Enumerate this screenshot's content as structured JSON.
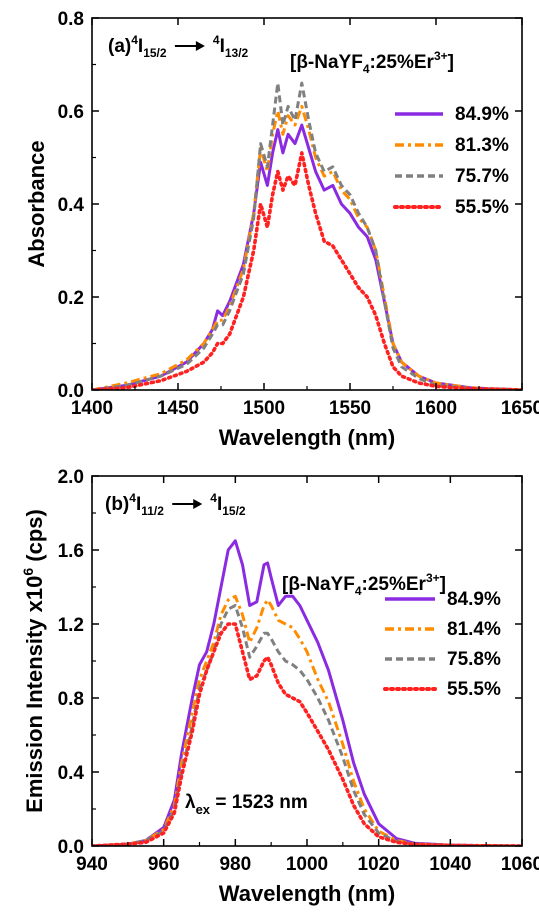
{
  "chart_data": [
    {
      "type": "line",
      "panel_label": "(a)",
      "transition": {
        "from_sup": "4",
        "from_main": "I",
        "from_sub": "15/2",
        "to_sup": "4",
        "to_main": "I",
        "to_sub": "13/2"
      },
      "sample": {
        "prefix": "[β-NaYF",
        "sub": "4",
        "mid": ":25%Er",
        "sup": "3+",
        "suffix": "]"
      },
      "xlabel": "Wavelength (nm)",
      "ylabel": "Absorbance",
      "xlim": [
        1400,
        1650
      ],
      "ylim": [
        0,
        0.8
      ],
      "xticks": [
        1400,
        1450,
        1500,
        1550,
        1600,
        1650
      ],
      "xtick_labels": [
        "1400",
        "1450",
        "1500",
        "1550",
        "1600",
        "1650"
      ],
      "yticks": [
        0,
        0.2,
        0.4,
        0.6,
        0.8
      ],
      "ytick_labels": [
        "0.0",
        "0.2",
        "0.4",
        "0.6",
        "0.8"
      ],
      "legend_position": "right",
      "series": [
        {
          "name": "84.9%",
          "color": "#8a2be2",
          "style": "solid",
          "x": [
            1400,
            1420,
            1440,
            1455,
            1465,
            1470,
            1473,
            1476,
            1480,
            1488,
            1494,
            1498,
            1502,
            1505,
            1508,
            1511,
            1514,
            1518,
            1522,
            1526,
            1530,
            1535,
            1540,
            1545,
            1550,
            1555,
            1560,
            1565,
            1570,
            1575,
            1580,
            1590,
            1600,
            1610,
            1620,
            1630,
            1640,
            1650
          ],
          "y": [
            0.0,
            0.01,
            0.03,
            0.06,
            0.1,
            0.13,
            0.17,
            0.16,
            0.19,
            0.27,
            0.38,
            0.49,
            0.44,
            0.51,
            0.56,
            0.51,
            0.55,
            0.53,
            0.57,
            0.52,
            0.47,
            0.43,
            0.44,
            0.4,
            0.38,
            0.35,
            0.33,
            0.28,
            0.19,
            0.1,
            0.06,
            0.03,
            0.015,
            0.01,
            0.005,
            0.003,
            0.002,
            0.0
          ]
        },
        {
          "name": "81.3%",
          "color": "#ff8c00",
          "style": "dashdot",
          "x": [
            1400,
            1420,
            1440,
            1455,
            1465,
            1470,
            1473,
            1476,
            1480,
            1488,
            1494,
            1498,
            1502,
            1505,
            1508,
            1511,
            1514,
            1518,
            1522,
            1526,
            1530,
            1535,
            1540,
            1545,
            1550,
            1555,
            1560,
            1565,
            1570,
            1575,
            1580,
            1590,
            1600,
            1610,
            1620,
            1630,
            1640,
            1650
          ],
          "y": [
            0.0,
            0.015,
            0.035,
            0.065,
            0.1,
            0.13,
            0.15,
            0.15,
            0.18,
            0.26,
            0.38,
            0.52,
            0.47,
            0.55,
            0.6,
            0.55,
            0.59,
            0.57,
            0.61,
            0.56,
            0.5,
            0.46,
            0.47,
            0.43,
            0.41,
            0.37,
            0.35,
            0.3,
            0.2,
            0.1,
            0.06,
            0.03,
            0.015,
            0.01,
            0.005,
            0.003,
            0.002,
            0.0
          ]
        },
        {
          "name": "75.7%",
          "color": "#808080",
          "style": "dashed",
          "x": [
            1400,
            1420,
            1440,
            1455,
            1465,
            1470,
            1473,
            1476,
            1480,
            1488,
            1494,
            1498,
            1502,
            1505,
            1508,
            1511,
            1514,
            1518,
            1522,
            1526,
            1530,
            1535,
            1540,
            1545,
            1550,
            1555,
            1560,
            1565,
            1570,
            1575,
            1580,
            1590,
            1600,
            1610,
            1620,
            1630,
            1640,
            1650
          ],
          "y": [
            0.0,
            0.01,
            0.03,
            0.055,
            0.09,
            0.12,
            0.14,
            0.14,
            0.17,
            0.25,
            0.37,
            0.53,
            0.48,
            0.57,
            0.66,
            0.57,
            0.61,
            0.58,
            0.66,
            0.58,
            0.51,
            0.47,
            0.48,
            0.44,
            0.42,
            0.38,
            0.35,
            0.3,
            0.19,
            0.09,
            0.05,
            0.025,
            0.01,
            0.007,
            0.004,
            0.002,
            0.001,
            0.0
          ]
        },
        {
          "name": "55.5%",
          "color": "#ff2020",
          "style": "dotted",
          "x": [
            1400,
            1420,
            1440,
            1455,
            1465,
            1470,
            1473,
            1476,
            1480,
            1488,
            1494,
            1498,
            1502,
            1505,
            1508,
            1511,
            1514,
            1518,
            1522,
            1526,
            1530,
            1535,
            1540,
            1545,
            1550,
            1555,
            1560,
            1565,
            1570,
            1575,
            1580,
            1590,
            1600,
            1610,
            1620,
            1630,
            1640,
            1650
          ],
          "y": [
            0.0,
            0.005,
            0.02,
            0.04,
            0.06,
            0.08,
            0.1,
            0.1,
            0.12,
            0.2,
            0.3,
            0.4,
            0.35,
            0.42,
            0.47,
            0.43,
            0.46,
            0.44,
            0.51,
            0.44,
            0.38,
            0.32,
            0.31,
            0.28,
            0.25,
            0.22,
            0.2,
            0.16,
            0.1,
            0.05,
            0.03,
            0.015,
            0.008,
            0.005,
            0.003,
            0.002,
            0.001,
            0.0
          ]
        }
      ]
    },
    {
      "type": "line",
      "panel_label": "(b)",
      "transition": {
        "from_sup": "4",
        "from_main": "I",
        "from_sub": "11/2",
        "to_sup": "4",
        "to_main": "I",
        "to_sub": "15/2"
      },
      "sample": {
        "prefix": "[β-NaYF",
        "sub": "4",
        "mid": ":25%Er",
        "sup": "3+",
        "suffix": "]"
      },
      "annotation": {
        "main": "λ",
        "sub": "ex",
        "text": " = 1523 nm"
      },
      "xlabel": "Wavelength (nm)",
      "ylabel_main": "Emission Intensity x10",
      "ylabel_sup": "6",
      "ylabel_unit": " (cps)",
      "xlim": [
        940,
        1060
      ],
      "ylim": [
        0,
        2.0
      ],
      "xticks": [
        940,
        960,
        980,
        1000,
        1020,
        1040,
        1060
      ],
      "xtick_labels": [
        "940",
        "960",
        "980",
        "1000",
        "1020",
        "1040",
        "1060"
      ],
      "yticks": [
        0,
        0.4,
        0.8,
        1.2,
        1.6,
        2.0
      ],
      "ytick_labels": [
        "0.0",
        "0.4",
        "0.8",
        "1.2",
        "1.6",
        "2.0"
      ],
      "legend_position": "right",
      "series": [
        {
          "name": "84.9%",
          "color": "#8a2be2",
          "style": "solid",
          "x": [
            940,
            950,
            955,
            960,
            963,
            965,
            968,
            970,
            972,
            974,
            976,
            978,
            980,
            982,
            984,
            986,
            988,
            989,
            990,
            992,
            994,
            996,
            998,
            1000,
            1003,
            1006,
            1010,
            1013,
            1016,
            1020,
            1025,
            1030,
            1040,
            1050,
            1060
          ],
          "y": [
            0.0,
            0.01,
            0.03,
            0.1,
            0.25,
            0.5,
            0.8,
            0.98,
            1.05,
            1.2,
            1.4,
            1.6,
            1.65,
            1.52,
            1.3,
            1.32,
            1.52,
            1.53,
            1.45,
            1.3,
            1.35,
            1.35,
            1.3,
            1.22,
            1.1,
            0.95,
            0.68,
            0.45,
            0.28,
            0.12,
            0.04,
            0.015,
            0.005,
            0.002,
            0.0
          ]
        },
        {
          "name": "81.4%",
          "color": "#ff8c00",
          "style": "dashdot",
          "x": [
            940,
            950,
            955,
            960,
            963,
            965,
            968,
            970,
            972,
            974,
            976,
            978,
            980,
            982,
            984,
            986,
            988,
            989,
            990,
            992,
            994,
            996,
            998,
            1000,
            1003,
            1006,
            1010,
            1013,
            1016,
            1020,
            1025,
            1030,
            1040,
            1050,
            1060
          ],
          "y": [
            0.0,
            0.01,
            0.03,
            0.09,
            0.22,
            0.45,
            0.72,
            0.9,
            1.0,
            1.1,
            1.25,
            1.33,
            1.35,
            1.25,
            1.1,
            1.18,
            1.3,
            1.33,
            1.3,
            1.22,
            1.2,
            1.18,
            1.12,
            1.05,
            0.9,
            0.78,
            0.55,
            0.35,
            0.2,
            0.08,
            0.03,
            0.01,
            0.005,
            0.002,
            0.0
          ]
        },
        {
          "name": "75.8%",
          "color": "#808080",
          "style": "dashed",
          "x": [
            940,
            950,
            955,
            960,
            963,
            965,
            968,
            970,
            972,
            974,
            976,
            978,
            980,
            982,
            984,
            986,
            988,
            989,
            990,
            992,
            994,
            996,
            998,
            1000,
            1003,
            1006,
            1010,
            1013,
            1016,
            1020,
            1025,
            1030,
            1040,
            1050,
            1060
          ],
          "y": [
            0.0,
            0.01,
            0.03,
            0.08,
            0.2,
            0.4,
            0.65,
            0.85,
            0.95,
            1.05,
            1.2,
            1.28,
            1.3,
            1.18,
            1.02,
            1.08,
            1.15,
            1.15,
            1.12,
            1.05,
            1.0,
            0.98,
            0.95,
            0.9,
            0.8,
            0.68,
            0.48,
            0.3,
            0.17,
            0.07,
            0.025,
            0.01,
            0.004,
            0.002,
            0.0
          ]
        },
        {
          "name": "55.5%",
          "color": "#ff2020",
          "style": "dotted",
          "x": [
            940,
            950,
            955,
            960,
            963,
            965,
            968,
            970,
            972,
            974,
            976,
            978,
            980,
            982,
            984,
            986,
            988,
            989,
            990,
            992,
            994,
            996,
            998,
            1000,
            1003,
            1006,
            1010,
            1013,
            1016,
            1020,
            1025,
            1030,
            1040,
            1050,
            1060
          ],
          "y": [
            0.0,
            0.01,
            0.02,
            0.07,
            0.18,
            0.38,
            0.62,
            0.82,
            0.95,
            1.05,
            1.15,
            1.2,
            1.2,
            1.05,
            0.9,
            0.92,
            1.0,
            1.02,
            0.98,
            0.88,
            0.82,
            0.8,
            0.78,
            0.72,
            0.62,
            0.52,
            0.36,
            0.22,
            0.12,
            0.05,
            0.02,
            0.008,
            0.003,
            0.001,
            0.0
          ]
        }
      ]
    }
  ]
}
